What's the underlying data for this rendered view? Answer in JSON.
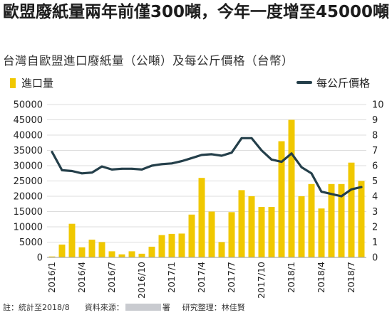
{
  "headline": "歐盟廢紙量兩年前僅300噸，今年一度增至45000噸",
  "subtitle": "台灣自歐盟進口廢紙量（公噸）及每公斤價格（台幣）",
  "footer": {
    "note": "註：統計至2018/8",
    "source_label": "資料來源：",
    "source_suffix": "署",
    "research": "研究整理：林佳賢"
  },
  "chart_data": {
    "type": "bar",
    "legend": {
      "bars": "進口量",
      "line": "每公斤價格"
    },
    "colors": {
      "bars": "#f0c800",
      "line": "#243f4a",
      "grid": "#dddddd"
    },
    "y_left": {
      "ylim": [
        0,
        50000
      ],
      "ticks": [
        "50000",
        "45000",
        "40000",
        "35000",
        "30000",
        "25000",
        "20000",
        "15000",
        "10000",
        "5000",
        "0"
      ]
    },
    "y_right": {
      "ylim": [
        0,
        10
      ],
      "ticks": [
        "10",
        "9",
        "8",
        "7",
        "6",
        "5",
        "4",
        "3",
        "2",
        "1",
        "0"
      ]
    },
    "x_tick_labels": [
      "2016/1",
      "2016/4",
      "2016/7",
      "2016/10",
      "2017/1",
      "2017/4",
      "2017/7",
      "2017/10",
      "2018/1",
      "2018/4",
      "2018/7"
    ],
    "categories": [
      "2016/1",
      "2016/2",
      "2016/3",
      "2016/4",
      "2016/5",
      "2016/6",
      "2016/7",
      "2016/8",
      "2016/9",
      "2016/10",
      "2016/11",
      "2016/12",
      "2017/1",
      "2017/2",
      "2017/3",
      "2017/4",
      "2017/5",
      "2017/6",
      "2017/7",
      "2017/8",
      "2017/9",
      "2017/10",
      "2017/11",
      "2017/12",
      "2018/1",
      "2018/2",
      "2018/3",
      "2018/4",
      "2018/5",
      "2018/6",
      "2018/7",
      "2018/8"
    ],
    "series": [
      {
        "name": "進口量",
        "axis": "left",
        "values": [
          300,
          4200,
          11000,
          3300,
          5800,
          5000,
          2000,
          1000,
          2000,
          1200,
          3500,
          7300,
          7700,
          7800,
          14000,
          26000,
          15000,
          5000,
          14800,
          22000,
          20000,
          16500,
          16500,
          38000,
          45000,
          20000,
          24000,
          16000,
          24000,
          24000,
          31000,
          25000
        ]
      },
      {
        "name": "每公斤價格",
        "axis": "right",
        "values": [
          6.9,
          5.7,
          5.65,
          5.5,
          5.55,
          5.95,
          5.75,
          5.8,
          5.8,
          5.75,
          6.0,
          6.1,
          6.15,
          6.3,
          6.5,
          6.7,
          6.75,
          6.65,
          6.85,
          7.8,
          7.8,
          7.0,
          6.4,
          6.25,
          6.8,
          5.9,
          5.5,
          4.3,
          4.15,
          4.0,
          4.45,
          4.6
        ]
      }
    ]
  }
}
